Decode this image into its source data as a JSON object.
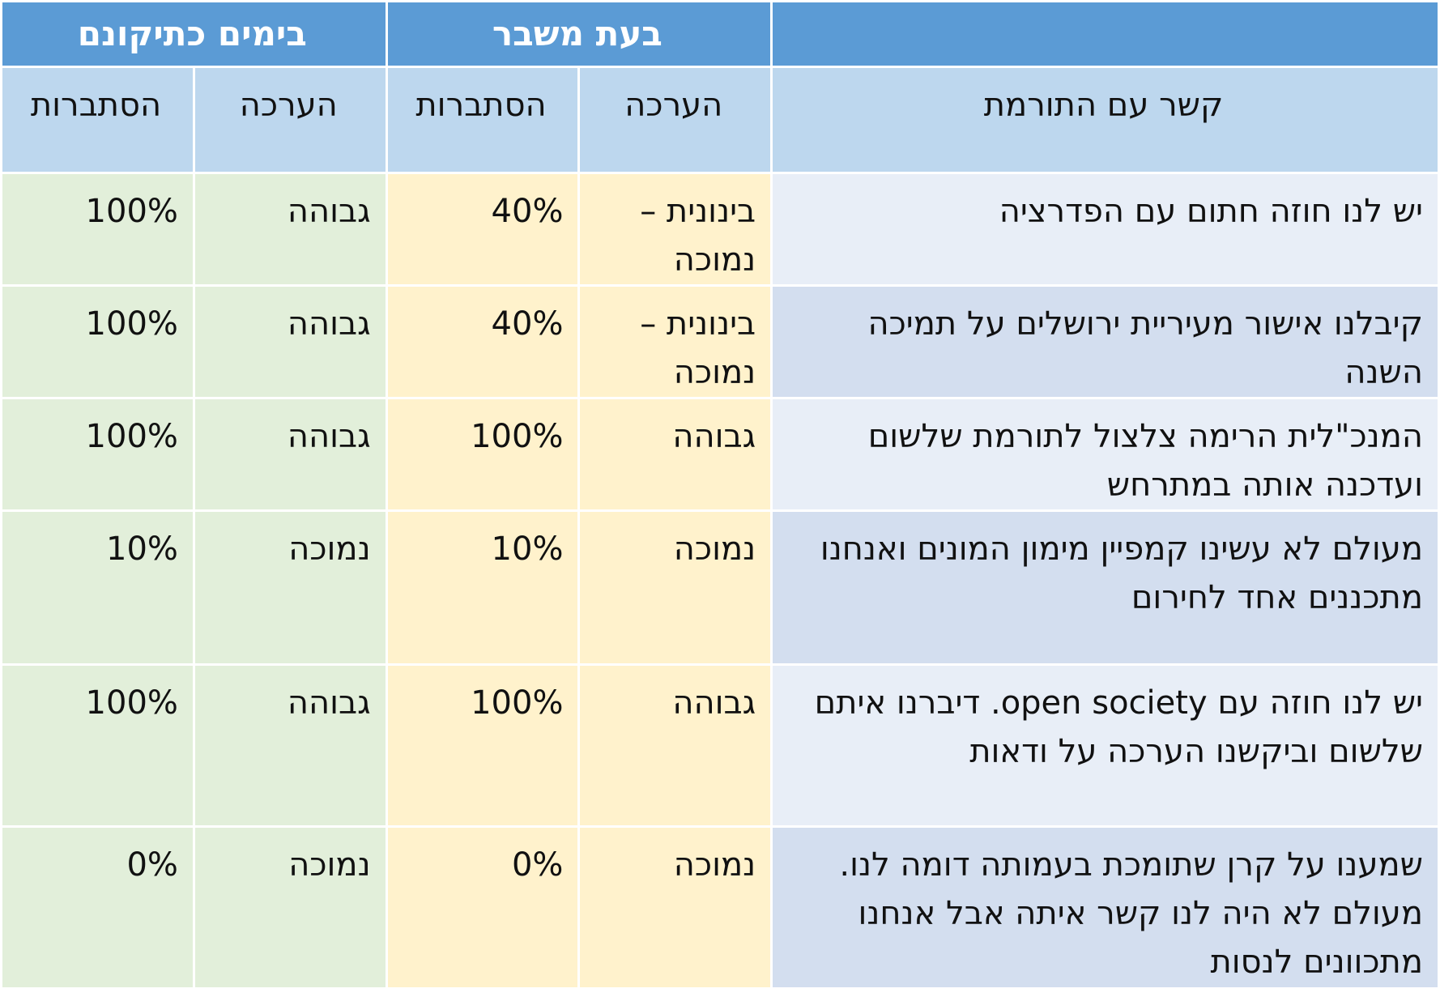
{
  "header": {
    "group_crisis": "בעת משבר",
    "group_normal": "בימים כתיקונם",
    "col_connection": "קשר עם התורמת",
    "col_assessment": "הערכה",
    "col_probability": "הסתברות"
  },
  "colors": {
    "header_blue": "#5b9bd5",
    "subheader_blue": "#bdd7ee",
    "crisis_yellow": "#fff2cc",
    "normal_green": "#e2efda",
    "desc_light": "#e8eef7",
    "desc_dark": "#d3deef"
  },
  "rows": [
    {
      "description": "יש לנו חוזה חתום עם הפדרציה",
      "crisis_assessment": "בינונית – נמוכה",
      "crisis_probability": "40%",
      "normal_assessment": "גבוהה",
      "normal_probability": "100%"
    },
    {
      "description": "קיבלנו אישור מעיריית ירושלים על תמיכה השנה",
      "crisis_assessment": "בינונית – נמוכה",
      "crisis_probability": "40%",
      "normal_assessment": "גבוהה",
      "normal_probability": "100%"
    },
    {
      "description": "המנכ\"לית הרימה צלצול לתורמת שלשום ועדכנה אותה במתרחש",
      "crisis_assessment": "גבוהה",
      "crisis_probability": "100%",
      "normal_assessment": "גבוהה",
      "normal_probability": "100%"
    },
    {
      "description": "מעולם לא עשינו קמפיין מימון המונים ואנחנו מתכננים אחד לחירום",
      "crisis_assessment": "נמוכה",
      "crisis_probability": "10%",
      "normal_assessment": "נמוכה",
      "normal_probability": "10%"
    },
    {
      "description": "יש לנו חוזה עם open society. דיברנו איתם שלשום וביקשנו הערכה על ודאות",
      "crisis_assessment": "גבוהה",
      "crisis_probability": "100%",
      "normal_assessment": "גבוהה",
      "normal_probability": "100%"
    },
    {
      "description": "שמענו על קרן שתומכת בעמותה דומה לנו. מעולם לא היה לנו קשר איתה אבל אנחנו מתכוונים לנסות",
      "crisis_assessment": "נמוכה",
      "crisis_probability": "0%",
      "normal_assessment": "נמוכה",
      "normal_probability": "0%"
    }
  ]
}
